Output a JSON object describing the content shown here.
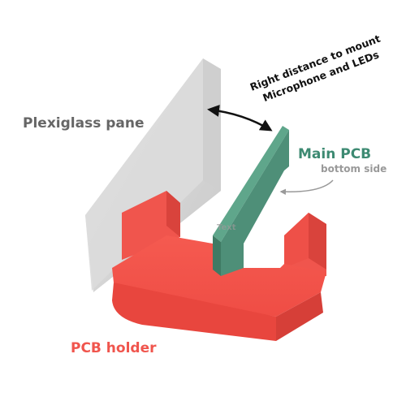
{
  "labels": {
    "pane": "Plexiglass pane",
    "distance_line1": "Right distance to mount",
    "distance_line2": "Microphone and LEDs",
    "pcb": "Main PCB",
    "pcb_sub": "bottom side",
    "holder": "PCB holder",
    "faint": "Text"
  },
  "colors": {
    "background": "#ffffff",
    "holder": "#f0554d",
    "pcb": "#4e8f78",
    "pane": "#d4d4d4",
    "pane_label": "#666666",
    "holder_label": "#f0554d",
    "pcb_label": "#3d8a72",
    "sub_label": "#999999",
    "annotation": "#111111"
  }
}
